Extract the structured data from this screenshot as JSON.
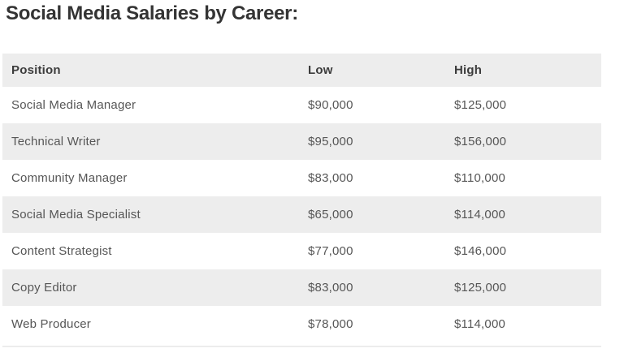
{
  "page": {
    "title": "Social Media Salaries by Career:"
  },
  "table": {
    "headers": [
      "Position",
      "Low",
      "High"
    ],
    "rows": [
      {
        "position": "Social Media Manager",
        "low": "$90,000",
        "high": "$125,000"
      },
      {
        "position": "Technical Writer",
        "low": "$95,000",
        "high": "$156,000"
      },
      {
        "position": "Community Manager",
        "low": "$83,000",
        "high": "$110,000"
      },
      {
        "position": "Social Media Specialist",
        "low": "$65,000",
        "high": "$114,000"
      },
      {
        "position": "Content Strategist",
        "low": "$77,000",
        "high": "$146,000"
      },
      {
        "position": "Copy Editor",
        "low": "$83,000",
        "high": "$125,000"
      },
      {
        "position": "Web Producer",
        "low": "$78,000",
        "high": "$114,000"
      }
    ]
  },
  "colors": {
    "title_text": "#343434",
    "header_text": "#3c3c3c",
    "body_text": "#565656",
    "stripe_bg": "#ededed",
    "row_bg": "#ffffff",
    "divider": "#ececec"
  },
  "chart_data": {
    "type": "table",
    "title": "Social Media Salaries by Career:",
    "columns": [
      "Position",
      "Low",
      "High"
    ],
    "rows": [
      [
        "Social Media Manager",
        90000,
        125000
      ],
      [
        "Technical Writer",
        95000,
        156000
      ],
      [
        "Community Manager",
        83000,
        110000
      ],
      [
        "Social Media Specialist",
        65000,
        114000
      ],
      [
        "Content Strategist",
        77000,
        146000
      ],
      [
        "Copy Editor",
        83000,
        125000
      ],
      [
        "Web Producer",
        78000,
        114000
      ]
    ],
    "notes": "Salary table, zebra striped rows, header row shaded gray"
  }
}
